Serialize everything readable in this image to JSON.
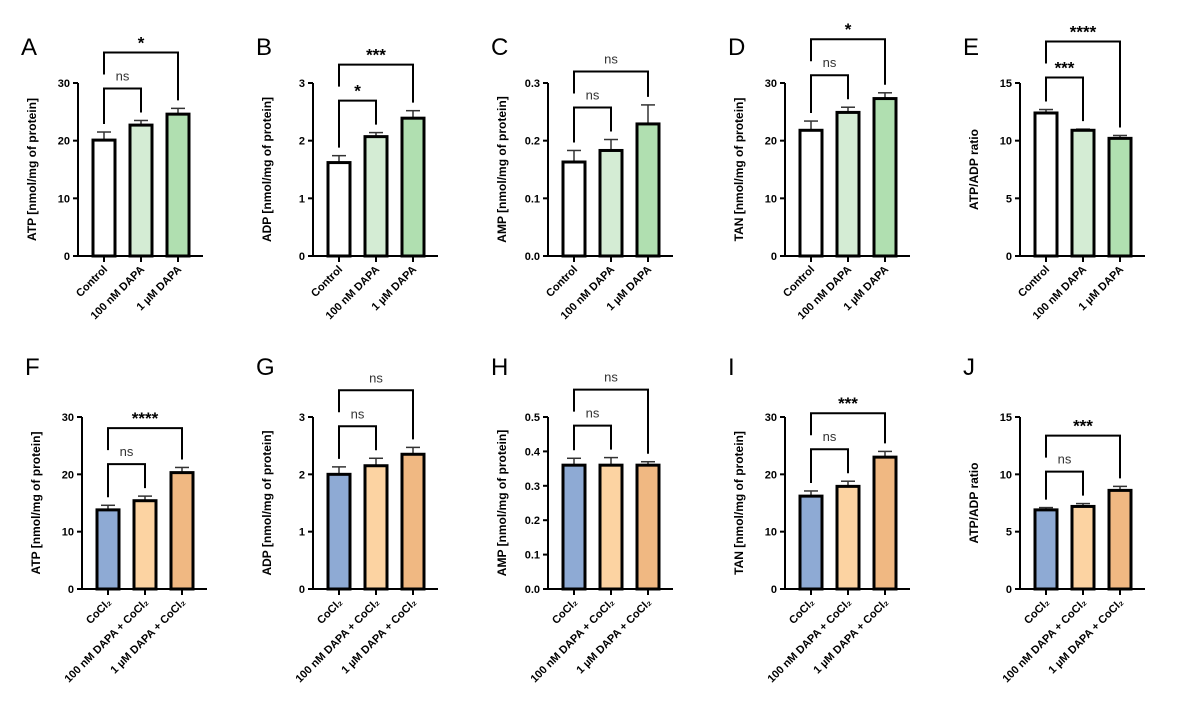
{
  "colors": {
    "control": "#ffffff",
    "dapa100": "#d4ecd4",
    "dapa1": "#b0dfb0",
    "cocl2": "#8eaad4",
    "dapa100_cocl2": "#fcd3a2",
    "dapa1_cocl2": "#f0b882"
  },
  "chart_data": [
    {
      "panel": "A",
      "type": "bar",
      "ylabel": "ATP [nmol/mg of protein]",
      "ylim": [
        0,
        30
      ],
      "yticks": [
        "0",
        "10",
        "20",
        "30"
      ],
      "categories": [
        "Control",
        "100 nM DAPA",
        "1 µM DAPA"
      ],
      "values": [
        20.1,
        22.7,
        24.6
      ],
      "errors": [
        1.4,
        0.8,
        1.0
      ],
      "colors": [
        "#ffffff",
        "#d4ecd4",
        "#b0dfb0"
      ],
      "significance": [
        {
          "pair": [
            0,
            1
          ],
          "label": "ns"
        },
        {
          "pair": [
            0,
            2
          ],
          "label": "*"
        }
      ]
    },
    {
      "panel": "B",
      "type": "bar",
      "ylabel": "ADP [nmol/mg of protein]",
      "ylim": [
        0,
        3
      ],
      "yticks": [
        "0",
        "1",
        "2",
        "3"
      ],
      "categories": [
        "Control",
        "100 nM DAPA",
        "1 µM DAPA"
      ],
      "values": [
        1.62,
        2.07,
        2.39
      ],
      "errors": [
        0.12,
        0.07,
        0.13
      ],
      "colors": [
        "#ffffff",
        "#d4ecd4",
        "#b0dfb0"
      ],
      "significance": [
        {
          "pair": [
            0,
            1
          ],
          "label": "*"
        },
        {
          "pair": [
            0,
            2
          ],
          "label": "***"
        }
      ]
    },
    {
      "panel": "C",
      "type": "bar",
      "ylabel": "AMP [nmol/mg of protein]",
      "ylim": [
        0,
        0.3
      ],
      "yticks": [
        "0.0",
        "0.1",
        "0.2",
        "0.3"
      ],
      "categories": [
        "Control",
        "100 nM DAPA",
        "1 µM DAPA"
      ],
      "values": [
        0.163,
        0.183,
        0.229
      ],
      "errors": [
        0.02,
        0.019,
        0.033
      ],
      "colors": [
        "#ffffff",
        "#d4ecd4",
        "#b0dfb0"
      ],
      "significance": [
        {
          "pair": [
            0,
            1
          ],
          "label": "ns"
        },
        {
          "pair": [
            0,
            2
          ],
          "label": "ns"
        }
      ]
    },
    {
      "panel": "D",
      "type": "bar",
      "ylabel": "TAN [nmol/mg of protein]",
      "ylim": [
        0,
        30
      ],
      "yticks": [
        "0",
        "10",
        "20",
        "30"
      ],
      "categories": [
        "Control",
        "100 nM DAPA",
        "1 µM DAPA"
      ],
      "values": [
        21.8,
        24.9,
        27.3
      ],
      "errors": [
        1.6,
        0.9,
        1.0
      ],
      "colors": [
        "#ffffff",
        "#d4ecd4",
        "#b0dfb0"
      ],
      "significance": [
        {
          "pair": [
            0,
            1
          ],
          "label": "ns"
        },
        {
          "pair": [
            0,
            2
          ],
          "label": "*"
        }
      ]
    },
    {
      "panel": "E",
      "type": "bar",
      "ylabel": "ATP/ADP ratio",
      "ylim": [
        0,
        15
      ],
      "yticks": [
        "0",
        "5",
        "10",
        "15"
      ],
      "categories": [
        "Control",
        "100 nM DAPA",
        "1 µM DAPA"
      ],
      "values": [
        12.4,
        10.9,
        10.2
      ],
      "errors": [
        0.3,
        0.1,
        0.25
      ],
      "colors": [
        "#ffffff",
        "#d4ecd4",
        "#b0dfb0"
      ],
      "significance": [
        {
          "pair": [
            0,
            1
          ],
          "label": "***"
        },
        {
          "pair": [
            0,
            2
          ],
          "label": "****"
        }
      ]
    },
    {
      "panel": "F",
      "type": "bar",
      "ylabel": "ATP [nmol/mg of protein]",
      "ylim": [
        0,
        30
      ],
      "yticks": [
        "0",
        "10",
        "20",
        "30"
      ],
      "categories": [
        "CoCl₂",
        "100 nM DAPA + CoCl₂",
        "1 µM DAPA + CoCl₂"
      ],
      "values": [
        13.8,
        15.4,
        20.3
      ],
      "errors": [
        0.8,
        0.8,
        0.9
      ],
      "colors": [
        "#8eaad4",
        "#fcd3a2",
        "#f0b882"
      ],
      "significance": [
        {
          "pair": [
            0,
            1
          ],
          "label": "ns"
        },
        {
          "pair": [
            0,
            2
          ],
          "label": "****"
        }
      ]
    },
    {
      "panel": "G",
      "type": "bar",
      "ylabel": "ADP [nmol/mg of protein]",
      "ylim": [
        0,
        3
      ],
      "yticks": [
        "0",
        "1",
        "2",
        "3"
      ],
      "categories": [
        "CoCl₂",
        "100 nM DAPA + CoCl₂",
        "1 µM DAPA + CoCl₂"
      ],
      "values": [
        2.0,
        2.15,
        2.35
      ],
      "errors": [
        0.13,
        0.13,
        0.12
      ],
      "colors": [
        "#8eaad4",
        "#fcd3a2",
        "#f0b882"
      ],
      "significance": [
        {
          "pair": [
            0,
            1
          ],
          "label": "ns"
        },
        {
          "pair": [
            0,
            2
          ],
          "label": "ns"
        }
      ]
    },
    {
      "panel": "H",
      "type": "bar",
      "ylabel": "AMP [nmol/mg of protein]",
      "ylim": [
        0,
        0.5
      ],
      "yticks": [
        "0.0",
        "0.1",
        "0.2",
        "0.3",
        "0.4",
        "0.5"
      ],
      "categories": [
        "CoCl₂",
        "100 nM DAPA + CoCl₂",
        "1 µM DAPA + CoCl₂"
      ],
      "values": [
        0.36,
        0.36,
        0.36
      ],
      "errors": [
        0.02,
        0.022,
        0.01
      ],
      "colors": [
        "#8eaad4",
        "#fcd3a2",
        "#f0b882"
      ],
      "significance": [
        {
          "pair": [
            0,
            1
          ],
          "label": "ns"
        },
        {
          "pair": [
            0,
            2
          ],
          "label": "ns"
        }
      ]
    },
    {
      "panel": "I",
      "type": "bar",
      "ylabel": "TAN [nmol/mg of protein]",
      "ylim": [
        0,
        30
      ],
      "yticks": [
        "0",
        "10",
        "20",
        "30"
      ],
      "categories": [
        "CoCl₂",
        "100 nM DAPA + CoCl₂",
        "1 µM DAPA + CoCl₂"
      ],
      "values": [
        16.2,
        17.9,
        23.0
      ],
      "errors": [
        0.9,
        0.9,
        1.0
      ],
      "colors": [
        "#8eaad4",
        "#fcd3a2",
        "#f0b882"
      ],
      "significance": [
        {
          "pair": [
            0,
            1
          ],
          "label": "ns"
        },
        {
          "pair": [
            0,
            2
          ],
          "label": "***"
        }
      ]
    },
    {
      "panel": "J",
      "type": "bar",
      "ylabel": "ATP/ADP ratio",
      "ylim": [
        0,
        15
      ],
      "yticks": [
        "0",
        "5",
        "10",
        "15"
      ],
      "categories": [
        "CoCl₂",
        "100 nM DAPA + CoCl₂",
        "1 µM DAPA + CoCl₂"
      ],
      "values": [
        6.9,
        7.2,
        8.6
      ],
      "errors": [
        0.2,
        0.25,
        0.35
      ],
      "colors": [
        "#8eaad4",
        "#fcd3a2",
        "#f0b882"
      ],
      "significance": [
        {
          "pair": [
            0,
            1
          ],
          "label": "ns"
        },
        {
          "pair": [
            0,
            2
          ],
          "label": "***"
        }
      ]
    }
  ]
}
